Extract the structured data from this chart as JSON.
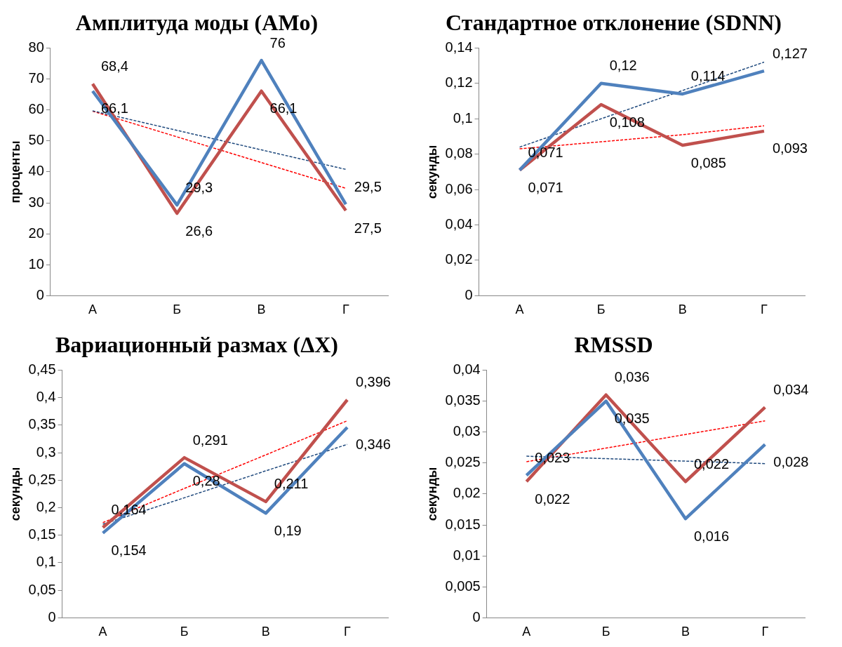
{
  "chart_data": [
    {
      "type": "line",
      "title": "Амплитуда моды (AMo)",
      "ylabel": "проценты",
      "categories": [
        "А",
        "Б",
        "В",
        "Г"
      ],
      "ylim": [
        0,
        80
      ],
      "yticks": [
        0,
        10,
        20,
        30,
        40,
        50,
        60,
        70,
        80
      ],
      "grid": false,
      "legend": false,
      "marker": "none",
      "series": [
        {
          "color": "#4f81bd",
          "values": [
            66.1,
            29.3,
            76,
            29.5
          ],
          "value_labels": [
            "66,1",
            "29,3",
            "76",
            "29,5"
          ]
        },
        {
          "color": "#c0504d",
          "values": [
            68.4,
            26.6,
            66.1,
            27.5
          ],
          "value_labels": [
            "68,4",
            "26,6",
            "66,1",
            "27,5"
          ]
        },
        {
          "color": "#1f497d",
          "values": [
            59.7,
            53.4,
            47.1,
            40.8
          ],
          "line_style": "dashed"
        },
        {
          "color": "#ff0000",
          "values": [
            59.6,
            51.3,
            43.0,
            34.7
          ],
          "line_style": "dashed"
        }
      ]
    },
    {
      "type": "line",
      "title": "Стандартное отклонение (SDNN)",
      "ylabel": "секунды",
      "categories": [
        "А",
        "Б",
        "В",
        "Г"
      ],
      "ylim": [
        0,
        0.14
      ],
      "yticks": [
        0,
        {
          "value": 0.02,
          "label": "0,02"
        },
        {
          "value": 0.04,
          "label": "0,04"
        },
        {
          "value": 0.06,
          "label": "0,06"
        },
        {
          "value": 0.08,
          "label": "0,08"
        },
        {
          "value": 0.1,
          "label": "0,1"
        },
        {
          "value": 0.12,
          "label": "0,12"
        },
        {
          "value": 0.14,
          "label": "0,14"
        }
      ],
      "grid": false,
      "legend": false,
      "marker": "none",
      "series": [
        {
          "color": "#4f81bd",
          "values": [
            0.071,
            0.12,
            0.114,
            0.127
          ],
          "value_labels": [
            "0,071",
            "0,12",
            "0,114",
            "0,127"
          ]
        },
        {
          "color": "#c0504d",
          "values": [
            0.071,
            0.108,
            0.085,
            0.093
          ],
          "value_labels": [
            "0,071",
            "0,108",
            "0,085",
            "0,093"
          ]
        },
        {
          "color": "#1f497d",
          "values": [
            0.084,
            0.1,
            0.116,
            0.132
          ],
          "line_style": "dashed"
        },
        {
          "color": "#ff0000",
          "values": [
            0.083,
            0.087,
            0.091,
            0.096
          ],
          "line_style": "dashed"
        }
      ]
    },
    {
      "type": "line",
      "title": "Вариационный размах (ΔX)",
      "ylabel": "секунды",
      "categories": [
        "А",
        "Б",
        "В",
        "Г"
      ],
      "ylim": [
        0,
        0.45
      ],
      "yticks": [
        0,
        {
          "value": 0.05,
          "label": "0,05"
        },
        {
          "value": 0.1,
          "label": "0,1"
        },
        {
          "value": 0.15,
          "label": "0,15"
        },
        {
          "value": 0.2,
          "label": "0,2"
        },
        {
          "value": 0.25,
          "label": "0,25"
        },
        {
          "value": 0.3,
          "label": "0,3"
        },
        {
          "value": 0.35,
          "label": "0,35"
        },
        {
          "value": 0.4,
          "label": "0,4"
        },
        {
          "value": 0.45,
          "label": "0,45"
        }
      ],
      "grid": false,
      "legend": false,
      "marker": "none",
      "series": [
        {
          "color": "#4f81bd",
          "values": [
            0.154,
            0.28,
            0.19,
            0.346
          ],
          "value_labels": [
            "0,154",
            "0,28",
            "0,19",
            "0,346"
          ]
        },
        {
          "color": "#c0504d",
          "values": [
            0.164,
            0.291,
            0.211,
            0.396
          ],
          "value_labels": [
            "0,164",
            "0,291",
            "0,211",
            "0,396"
          ]
        },
        {
          "color": "#1f497d",
          "values": [
            0.17,
            0.218,
            0.267,
            0.315
          ],
          "line_style": "dashed"
        },
        {
          "color": "#ff0000",
          "values": [
            0.173,
            0.235,
            0.296,
            0.358
          ],
          "line_style": "dashed"
        }
      ]
    },
    {
      "type": "line",
      "title": "RMSSD",
      "ylabel": "секунды",
      "categories": [
        "А",
        "Б",
        "В",
        "Г"
      ],
      "ylim": [
        0,
        0.04
      ],
      "yticks": [
        0,
        {
          "value": 0.005,
          "label": "0,005"
        },
        {
          "value": 0.01,
          "label": "0,01"
        },
        {
          "value": 0.015,
          "label": "0,015"
        },
        {
          "value": 0.02,
          "label": "0,02"
        },
        {
          "value": 0.025,
          "label": "0,025"
        },
        {
          "value": 0.03,
          "label": "0,03"
        },
        {
          "value": 0.035,
          "label": "0,035"
        },
        {
          "value": 0.04,
          "label": "0,04"
        }
      ],
      "grid": false,
      "legend": false,
      "marker": "none",
      "series": [
        {
          "color": "#4f81bd",
          "values": [
            0.023,
            0.035,
            0.016,
            0.028
          ],
          "value_labels": [
            "0,023",
            "0,035",
            "0,016",
            "0,028"
          ]
        },
        {
          "color": "#c0504d",
          "values": [
            0.022,
            0.036,
            0.022,
            0.034
          ],
          "value_labels": [
            "0,022",
            "0,036",
            "0,022",
            "0,034"
          ]
        },
        {
          "color": "#1f497d",
          "values": [
            0.0261,
            0.0257,
            0.0253,
            0.0249
          ],
          "line_style": "dashed"
        },
        {
          "color": "#ff0000",
          "values": [
            0.0252,
            0.0274,
            0.0296,
            0.0318
          ],
          "line_style": "dashed"
        }
      ]
    }
  ]
}
